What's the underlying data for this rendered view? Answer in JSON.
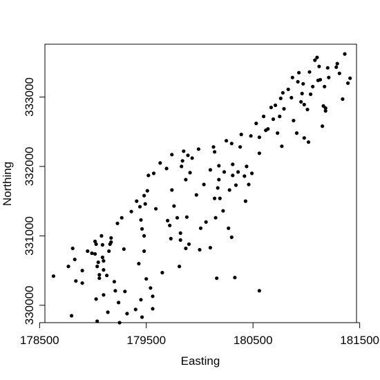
{
  "chart_data": {
    "type": "scatter",
    "title": "",
    "xlabel": "Easting",
    "ylabel": "Northing",
    "xlim": [
      178550,
      181470
    ],
    "ylim": [
      329750,
      333760
    ],
    "xticks": [
      178500,
      179500,
      180500,
      181500
    ],
    "xtick_labels": [
      "178500",
      "179500",
      "180500",
      "181500"
    ],
    "yticks": [
      330000,
      331000,
      332000,
      333000
    ],
    "ytick_labels": [
      "330000",
      "331000",
      "332000",
      "333000"
    ],
    "grid": false,
    "point_color": "#000000",
    "points": [
      [
        178630,
        330420
      ],
      [
        178770,
        330560
      ],
      [
        178810,
        330820
      ],
      [
        178830,
        330660
      ],
      [
        178840,
        330350
      ],
      [
        178900,
        330500
      ],
      [
        178900,
        330320
      ],
      [
        178800,
        329850
      ],
      [
        178950,
        330780
      ],
      [
        178990,
        330750
      ],
      [
        179020,
        330920
      ],
      [
        179020,
        330740
      ],
      [
        179030,
        330880
      ],
      [
        179050,
        330620
      ],
      [
        179040,
        330560
      ],
      [
        179060,
        330440
      ],
      [
        179060,
        330390
      ],
      [
        179080,
        331000
      ],
      [
        179090,
        330870
      ],
      [
        179090,
        330690
      ],
      [
        179100,
        330640
      ],
      [
        179100,
        330510
      ],
      [
        179130,
        330430
      ],
      [
        179150,
        330780
      ],
      [
        179160,
        330880
      ],
      [
        179170,
        330970
      ],
      [
        179170,
        330910
      ],
      [
        179030,
        330090
      ],
      [
        179040,
        329770
      ],
      [
        179100,
        330150
      ],
      [
        179140,
        329900
      ],
      [
        179200,
        330340
      ],
      [
        179210,
        330210
      ],
      [
        179230,
        331180
      ],
      [
        179240,
        330040
      ],
      [
        179250,
        329750
      ],
      [
        179270,
        331260
      ],
      [
        179290,
        330810
      ],
      [
        179300,
        330200
      ],
      [
        179320,
        329880
      ],
      [
        179360,
        331350
      ],
      [
        179400,
        329940
      ],
      [
        179410,
        331500
      ],
      [
        179430,
        330600
      ],
      [
        179440,
        331420
      ],
      [
        179450,
        331230
      ],
      [
        179460,
        331100
      ],
      [
        179450,
        330080
      ],
      [
        179460,
        329830
      ],
      [
        179480,
        331580
      ],
      [
        179480,
        331000
      ],
      [
        179480,
        330780
      ],
      [
        179490,
        331460
      ],
      [
        179500,
        330380
      ],
      [
        179510,
        331650
      ],
      [
        179520,
        331870
      ],
      [
        179540,
        330250
      ],
      [
        179560,
        329950
      ],
      [
        179560,
        330130
      ],
      [
        179570,
        331900
      ],
      [
        179590,
        331390
      ],
      [
        179630,
        332050
      ],
      [
        179650,
        330470
      ],
      [
        179690,
        331970
      ],
      [
        179700,
        331220
      ],
      [
        179720,
        331150
      ],
      [
        179730,
        330960
      ],
      [
        179740,
        332170
      ],
      [
        179740,
        331660
      ],
      [
        179760,
        331430
      ],
      [
        179790,
        331260
      ],
      [
        179810,
        330560
      ],
      [
        179820,
        331040
      ],
      [
        179820,
        330940
      ],
      [
        179830,
        332000
      ],
      [
        179840,
        332080
      ],
      [
        179850,
        332220
      ],
      [
        179870,
        331810
      ],
      [
        179870,
        330820
      ],
      [
        179880,
        331270
      ],
      [
        179890,
        332160
      ],
      [
        179900,
        330880
      ],
      [
        179910,
        331910
      ],
      [
        179930,
        332120
      ],
      [
        179970,
        331590
      ],
      [
        179990,
        332250
      ],
      [
        180000,
        330800
      ],
      [
        180010,
        331110
      ],
      [
        180040,
        331740
      ],
      [
        180060,
        331200
      ],
      [
        180100,
        331950
      ],
      [
        180100,
        330830
      ],
      [
        180130,
        332280
      ],
      [
        180140,
        332210
      ],
      [
        180140,
        331540
      ],
      [
        180150,
        331260
      ],
      [
        180160,
        330390
      ],
      [
        180170,
        331690
      ],
      [
        180180,
        332010
      ],
      [
        180180,
        331810
      ],
      [
        180190,
        331540
      ],
      [
        180220,
        331360
      ],
      [
        180230,
        331920
      ],
      [
        180250,
        332370
      ],
      [
        180270,
        331110
      ],
      [
        180280,
        331660
      ],
      [
        180300,
        330980
      ],
      [
        180300,
        332330
      ],
      [
        180310,
        332030
      ],
      [
        180310,
        331870
      ],
      [
        180330,
        330400
      ],
      [
        180340,
        331730
      ],
      [
        180360,
        331920
      ],
      [
        180380,
        332280
      ],
      [
        180390,
        332460
      ],
      [
        180420,
        331860
      ],
      [
        180430,
        331500
      ],
      [
        180440,
        332000
      ],
      [
        180460,
        331740
      ],
      [
        180480,
        332440
      ],
      [
        180490,
        331900
      ],
      [
        180530,
        332620
      ],
      [
        180560,
        330210
      ],
      [
        180560,
        332190
      ],
      [
        180560,
        332420
      ],
      [
        180600,
        332720
      ],
      [
        180620,
        332520
      ],
      [
        180640,
        332540
      ],
      [
        180670,
        332850
      ],
      [
        180690,
        332680
      ],
      [
        180710,
        332880
      ],
      [
        180730,
        332480
      ],
      [
        180750,
        332720
      ],
      [
        180760,
        332980
      ],
      [
        180770,
        332290
      ],
      [
        180780,
        333060
      ],
      [
        180790,
        332830
      ],
      [
        180830,
        333110
      ],
      [
        180860,
        332990
      ],
      [
        180870,
        333280
      ],
      [
        180880,
        332660
      ],
      [
        180910,
        332480
      ],
      [
        180920,
        333220
      ],
      [
        180930,
        333350
      ],
      [
        180950,
        332930
      ],
      [
        180960,
        333050
      ],
      [
        180970,
        333190
      ],
      [
        180980,
        332890
      ],
      [
        180980,
        332410
      ],
      [
        181010,
        332820
      ],
      [
        181020,
        332350
      ],
      [
        181030,
        333360
      ],
      [
        181040,
        333040
      ],
      [
        181060,
        333150
      ],
      [
        181080,
        333530
      ],
      [
        181100,
        333570
      ],
      [
        181110,
        333240
      ],
      [
        181120,
        333440
      ],
      [
        181130,
        333250
      ],
      [
        181150,
        332580
      ],
      [
        181160,
        332870
      ],
      [
        181170,
        333150
      ],
      [
        181180,
        332840
      ],
      [
        181180,
        332800
      ],
      [
        181200,
        333420
      ],
      [
        181210,
        333280
      ],
      [
        181280,
        333430
      ],
      [
        181290,
        333480
      ],
      [
        181310,
        333340
      ],
      [
        181340,
        332970
      ],
      [
        181360,
        333620
      ],
      [
        181390,
        333200
      ],
      [
        181410,
        333270
      ]
    ]
  }
}
